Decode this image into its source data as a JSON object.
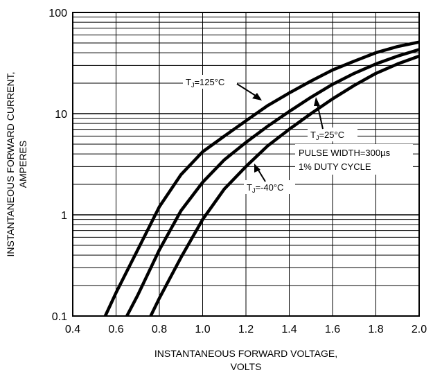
{
  "chart_data": {
    "type": "line",
    "xlabel_lines": [
      "INSTANTANEOUS FORWARD VOLTAGE,",
      "VOLTS"
    ],
    "ylabel_lines": [
      "INSTANTANEOUS FORWARD CURRENT,",
      "AMPERES"
    ],
    "xlim": [
      0.4,
      2.0
    ],
    "ylim": [
      0.1,
      100
    ],
    "yscale": "log",
    "grid": true,
    "x_ticks": [
      {
        "value": 0.4,
        "label": "0.4"
      },
      {
        "value": 0.6,
        "label": "0.6"
      },
      {
        "value": 0.8,
        "label": "0.8"
      },
      {
        "value": 1.0,
        "label": "1.0"
      },
      {
        "value": 1.2,
        "label": "1.2"
      },
      {
        "value": 1.4,
        "label": "1.4"
      },
      {
        "value": 1.6,
        "label": "1.6"
      },
      {
        "value": 1.8,
        "label": "1.8"
      },
      {
        "value": 2.0,
        "label": "2.0"
      }
    ],
    "y_ticks": [
      {
        "value": 0.1,
        "label": "0.1"
      },
      {
        "value": 1,
        "label": "1"
      },
      {
        "value": 10,
        "label": "10"
      },
      {
        "value": 100,
        "label": "100"
      }
    ],
    "series": [
      {
        "name": "TJ=125°C",
        "label_prefix": "T",
        "label_sub": "J",
        "label_rest": "=125°C",
        "x": [
          0.55,
          0.6,
          0.7,
          0.8,
          0.9,
          1.0,
          1.1,
          1.2,
          1.3,
          1.4,
          1.5,
          1.6,
          1.7,
          1.8,
          1.9,
          2.0
        ],
        "y": [
          0.1,
          0.17,
          0.45,
          1.2,
          2.5,
          4.2,
          6.0,
          8.5,
          12.0,
          16.0,
          21.0,
          27.0,
          33.0,
          40.0,
          46.0,
          51.0
        ]
      },
      {
        "name": "TJ=25°C",
        "label_prefix": "T",
        "label_sub": "J",
        "label_rest": "=25°C",
        "x": [
          0.65,
          0.7,
          0.8,
          0.9,
          1.0,
          1.1,
          1.2,
          1.3,
          1.4,
          1.5,
          1.6,
          1.7,
          1.8,
          1.9,
          2.0
        ],
        "y": [
          0.1,
          0.16,
          0.45,
          1.1,
          2.1,
          3.5,
          5.2,
          7.5,
          10.5,
          14.5,
          19.5,
          25.0,
          31.0,
          37.0,
          43.0
        ]
      },
      {
        "name": "TJ=-40°C",
        "label_prefix": "T",
        "label_sub": "J",
        "label_rest": "=-40°C",
        "x": [
          0.76,
          0.8,
          0.9,
          1.0,
          1.1,
          1.2,
          1.3,
          1.4,
          1.5,
          1.6,
          1.7,
          1.8,
          1.9,
          2.0
        ],
        "y": [
          0.1,
          0.15,
          0.38,
          0.9,
          1.8,
          3.0,
          4.8,
          7.0,
          10.0,
          14.0,
          19.0,
          25.0,
          31.0,
          37.0
        ]
      }
    ],
    "annotation_lines": [
      "PULSE WIDTH=300µs",
      "1% DUTY CYCLE"
    ]
  }
}
